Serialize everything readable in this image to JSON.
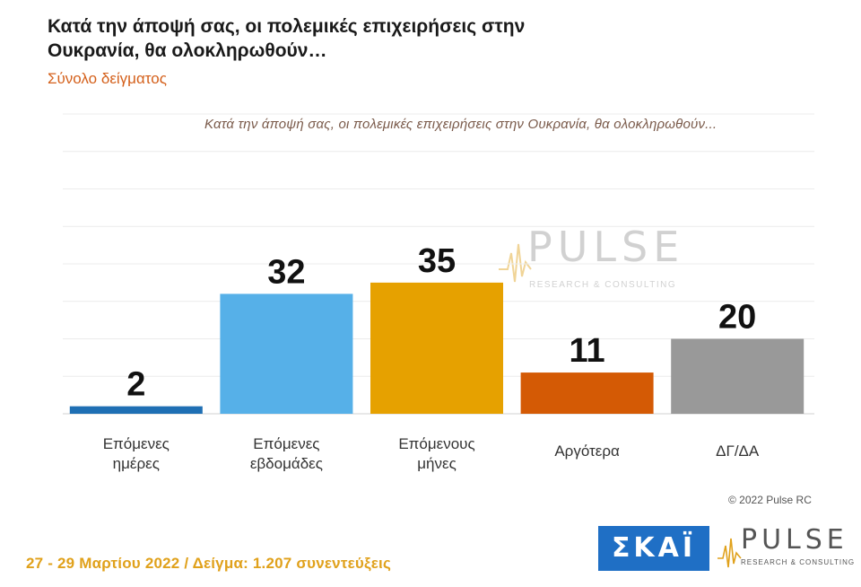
{
  "header": {
    "title": "Κατά την άποψή σας, οι πολεμικές επιχειρήσεις στην Ουκρανία, θα ολοκληρωθούν…",
    "subtitle": "Σύνολο δείγματος"
  },
  "chart_data": {
    "type": "bar",
    "title": "Κατά την άποψή σας, οι πολεμικές επιχειρήσεις στην Ουκρανία, θα ολοκληρωθούν...",
    "categories": [
      "Επόμενες ημέρες",
      "Επόμενες εβδομάδες",
      "Επόμενους μήνες",
      "Αργότερα",
      "ΔΓ/ΔΑ"
    ],
    "values": [
      2,
      32,
      35,
      11,
      20
    ],
    "colors": [
      "#1f6fb4",
      "#56b0e8",
      "#e6a100",
      "#d45a05",
      "#999999"
    ],
    "xlabel": "",
    "ylabel": "",
    "ylim": [
      0,
      80
    ],
    "grid": true,
    "legend": "none"
  },
  "footer": {
    "copyright": "© 2022 Pulse RC",
    "date_sample": "27 - 29 Μαρτίου 2022 / Δείγμα: 1.207 συνεντεύξεις"
  },
  "logos": {
    "skai": "ΣΚΑΪ",
    "pulse": "PULSE",
    "pulse_sub": "RESEARCH & CONSULTING",
    "watermark": "PULSE",
    "watermark_sub": "RESEARCH & CONSULTING"
  }
}
